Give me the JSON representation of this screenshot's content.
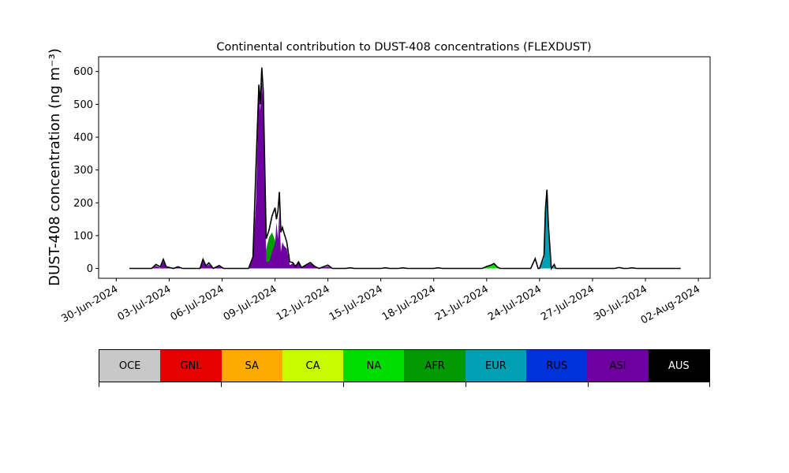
{
  "chart_data": {
    "type": "area",
    "title": "Continental contribution to DUST-408 concentrations (FLEXDUST)",
    "ylabel": "DUST-408 concentration (ng m⁻³)",
    "xlabel": "",
    "xlim": [
      "2024-06-29",
      "2024-08-02T16:00"
    ],
    "ylim": [
      -30,
      645
    ],
    "y_ticks": [
      0,
      100,
      200,
      300,
      400,
      500,
      600
    ],
    "x_ticks": [
      "30-Jun-2024",
      "03-Jul-2024",
      "06-Jul-2024",
      "09-Jul-2024",
      "12-Jul-2024",
      "15-Jul-2024",
      "18-Jul-2024",
      "21-Jul-2024",
      "24-Jul-2024",
      "27-Jul-2024",
      "30-Jul-2024",
      "02-Aug-2024"
    ],
    "grid": false,
    "stack_order": [
      "AFR",
      "NA",
      "EUR",
      "ASI"
    ],
    "series": [
      {
        "name": "AFR",
        "color": "#009a00",
        "points": [
          [
            "2024-07-08T08:00",
            0
          ],
          [
            "2024-07-08T12:00",
            60
          ],
          [
            "2024-07-08T16:00",
            95
          ],
          [
            "2024-07-08T20:00",
            110
          ],
          [
            "2024-07-09T00:00",
            85
          ],
          [
            "2024-07-09T04:00",
            60
          ],
          [
            "2024-07-09T08:00",
            50
          ],
          [
            "2024-07-09T12:00",
            40
          ],
          [
            "2024-07-09T16:00",
            20
          ],
          [
            "2024-07-09T20:00",
            8
          ],
          [
            "2024-07-10T00:00",
            0
          ]
        ]
      },
      {
        "name": "NA",
        "color": "#00dc00",
        "points": [
          [
            "2024-07-20T18:00",
            0
          ],
          [
            "2024-07-21T00:00",
            5
          ],
          [
            "2024-07-21T06:00",
            9
          ],
          [
            "2024-07-21T10:00",
            12
          ],
          [
            "2024-07-21T14:00",
            5
          ],
          [
            "2024-07-21T18:00",
            0
          ]
        ]
      },
      {
        "name": "EUR",
        "color": "#00a0b4",
        "points": [
          [
            "2024-07-24T00:00",
            0
          ],
          [
            "2024-07-24T06:00",
            30
          ],
          [
            "2024-07-24T08:00",
            170
          ],
          [
            "2024-07-24T10:00",
            225
          ],
          [
            "2024-07-24T12:00",
            120
          ],
          [
            "2024-07-24T16:00",
            0
          ],
          [
            "2024-07-24T20:00",
            6
          ],
          [
            "2024-07-24T22:00",
            0
          ]
        ]
      },
      {
        "name": "ASI",
        "color": "#6e00a0",
        "points": [
          [
            "2024-07-02T00:00",
            0
          ],
          [
            "2024-07-02T06:00",
            8
          ],
          [
            "2024-07-02T12:00",
            2
          ],
          [
            "2024-07-02T16:00",
            22
          ],
          [
            "2024-07-02T20:00",
            3
          ],
          [
            "2024-07-03T06:00",
            0
          ],
          [
            "2024-07-03T12:00",
            3
          ],
          [
            "2024-07-03T18:00",
            0
          ],
          [
            "2024-07-04T18:00",
            0
          ],
          [
            "2024-07-04T22:00",
            22
          ],
          [
            "2024-07-05T02:00",
            5
          ],
          [
            "2024-07-05T06:00",
            12
          ],
          [
            "2024-07-05T12:00",
            0
          ],
          [
            "2024-07-05T20:00",
            6
          ],
          [
            "2024-07-06T02:00",
            0
          ],
          [
            "2024-07-07T12:00",
            0
          ],
          [
            "2024-07-07T18:00",
            30
          ],
          [
            "2024-07-07T22:00",
            200
          ],
          [
            "2024-07-08T02:00",
            540
          ],
          [
            "2024-07-08T04:00",
            480
          ],
          [
            "2024-07-08T06:00",
            570
          ],
          [
            "2024-07-08T08:00",
            500
          ],
          [
            "2024-07-08T12:00",
            20
          ],
          [
            "2024-07-08T16:00",
            20
          ],
          [
            "2024-07-08T20:00",
            50
          ],
          [
            "2024-07-09T00:00",
            75
          ],
          [
            "2024-07-09T02:00",
            140
          ],
          [
            "2024-07-09T04:00",
            90
          ],
          [
            "2024-07-09T06:00",
            175
          ],
          [
            "2024-07-09T08:00",
            50
          ],
          [
            "2024-07-09T10:00",
            80
          ],
          [
            "2024-07-09T12:00",
            70
          ],
          [
            "2024-07-09T16:00",
            60
          ],
          [
            "2024-07-09T20:00",
            10
          ],
          [
            "2024-07-10T00:00",
            15
          ],
          [
            "2024-07-10T04:00",
            5
          ],
          [
            "2024-07-10T08:00",
            18
          ],
          [
            "2024-07-10T12:00",
            2
          ],
          [
            "2024-07-11T00:00",
            15
          ],
          [
            "2024-07-11T06:00",
            5
          ],
          [
            "2024-07-11T12:00",
            0
          ],
          [
            "2024-07-12T00:00",
            6
          ],
          [
            "2024-07-12T06:00",
            0
          ],
          [
            "2024-07-13T00:00",
            0
          ],
          [
            "2024-07-13T06:00",
            1
          ],
          [
            "2024-07-13T12:00",
            0
          ]
        ]
      },
      {
        "name": "total",
        "color": "#000000",
        "points": [
          [
            "2024-06-30T18:00",
            0
          ],
          [
            "2024-07-02T00:00",
            0
          ],
          [
            "2024-07-02T06:00",
            12
          ],
          [
            "2024-07-02T12:00",
            5
          ],
          [
            "2024-07-02T16:00",
            28
          ],
          [
            "2024-07-02T20:00",
            5
          ],
          [
            "2024-07-03T06:00",
            0
          ],
          [
            "2024-07-03T12:00",
            5
          ],
          [
            "2024-07-03T18:00",
            0
          ],
          [
            "2024-07-04T18:00",
            0
          ],
          [
            "2024-07-04T22:00",
            28
          ],
          [
            "2024-07-05T02:00",
            8
          ],
          [
            "2024-07-05T06:00",
            17
          ],
          [
            "2024-07-05T12:00",
            0
          ],
          [
            "2024-07-05T20:00",
            9
          ],
          [
            "2024-07-06T02:00",
            0
          ],
          [
            "2024-07-07T12:00",
            0
          ],
          [
            "2024-07-07T18:00",
            35
          ],
          [
            "2024-07-07T22:00",
            300
          ],
          [
            "2024-07-08T02:00",
            560
          ],
          [
            "2024-07-08T04:00",
            500
          ],
          [
            "2024-07-08T06:00",
            612
          ],
          [
            "2024-07-08T08:00",
            540
          ],
          [
            "2024-07-08T12:00",
            90
          ],
          [
            "2024-07-08T16:00",
            118
          ],
          [
            "2024-07-08T20:00",
            160
          ],
          [
            "2024-07-09T00:00",
            185
          ],
          [
            "2024-07-09T02:00",
            150
          ],
          [
            "2024-07-09T04:00",
            175
          ],
          [
            "2024-07-09T06:00",
            233
          ],
          [
            "2024-07-09T08:00",
            110
          ],
          [
            "2024-07-09T10:00",
            125
          ],
          [
            "2024-07-09T12:00",
            110
          ],
          [
            "2024-07-09T16:00",
            80
          ],
          [
            "2024-07-09T20:00",
            20
          ],
          [
            "2024-07-10T00:00",
            18
          ],
          [
            "2024-07-10T04:00",
            6
          ],
          [
            "2024-07-10T08:00",
            20
          ],
          [
            "2024-07-10T12:00",
            3
          ],
          [
            "2024-07-11T00:00",
            18
          ],
          [
            "2024-07-11T06:00",
            6
          ],
          [
            "2024-07-11T12:00",
            0
          ],
          [
            "2024-07-12T00:00",
            10
          ],
          [
            "2024-07-12T06:00",
            0
          ],
          [
            "2024-07-13T00:00",
            0
          ],
          [
            "2024-07-13T06:00",
            2
          ],
          [
            "2024-07-13T12:00",
            0
          ],
          [
            "2024-07-15T00:00",
            0
          ],
          [
            "2024-07-15T06:00",
            2
          ],
          [
            "2024-07-15T12:00",
            0
          ],
          [
            "2024-07-16T00:00",
            0
          ],
          [
            "2024-07-16T06:00",
            2
          ],
          [
            "2024-07-16T12:00",
            0
          ],
          [
            "2024-07-18T00:00",
            0
          ],
          [
            "2024-07-18T06:00",
            2
          ],
          [
            "2024-07-18T12:00",
            0
          ],
          [
            "2024-07-20T18:00",
            0
          ],
          [
            "2024-07-21T00:00",
            6
          ],
          [
            "2024-07-21T06:00",
            10
          ],
          [
            "2024-07-21T10:00",
            15
          ],
          [
            "2024-07-21T14:00",
            5
          ],
          [
            "2024-07-21T18:00",
            0
          ],
          [
            "2024-07-23T12:00",
            0
          ],
          [
            "2024-07-23T18:00",
            30
          ],
          [
            "2024-07-23T22:00",
            0
          ],
          [
            "2024-07-24T00:00",
            0
          ],
          [
            "2024-07-24T06:00",
            40
          ],
          [
            "2024-07-24T08:00",
            180
          ],
          [
            "2024-07-24T10:00",
            240
          ],
          [
            "2024-07-24T12:00",
            130
          ],
          [
            "2024-07-24T16:00",
            0
          ],
          [
            "2024-07-24T20:00",
            12
          ],
          [
            "2024-07-24T22:00",
            0
          ],
          [
            "2024-07-28T06:00",
            0
          ],
          [
            "2024-07-28T12:00",
            3
          ],
          [
            "2024-07-28T18:00",
            0
          ],
          [
            "2024-07-29T00:00",
            0
          ],
          [
            "2024-07-29T06:00",
            2
          ],
          [
            "2024-07-29T12:00",
            0
          ],
          [
            "2024-08-01T00:00",
            0
          ]
        ]
      }
    ],
    "legend": {
      "placement": "bottom",
      "entries": [
        {
          "name": "OCE",
          "color": "#c8c8c8",
          "text_color": "#000000"
        },
        {
          "name": "GNL",
          "color": "#e60000",
          "text_color": "#000000"
        },
        {
          "name": "SA",
          "color": "#ffaa00",
          "text_color": "#000000"
        },
        {
          "name": "CA",
          "color": "#c8fa00",
          "text_color": "#000000"
        },
        {
          "name": "NA",
          "color": "#00dc00",
          "text_color": "#000000"
        },
        {
          "name": "AFR",
          "color": "#009a00",
          "text_color": "#000000"
        },
        {
          "name": "EUR",
          "color": "#00a0b4",
          "text_color": "#000000"
        },
        {
          "name": "RUS",
          "color": "#0032dc",
          "text_color": "#000000"
        },
        {
          "name": "ASI",
          "color": "#6e00a0",
          "text_color": "#000000"
        },
        {
          "name": "AUS",
          "color": "#000000",
          "text_color": "#ffffff"
        }
      ]
    }
  }
}
